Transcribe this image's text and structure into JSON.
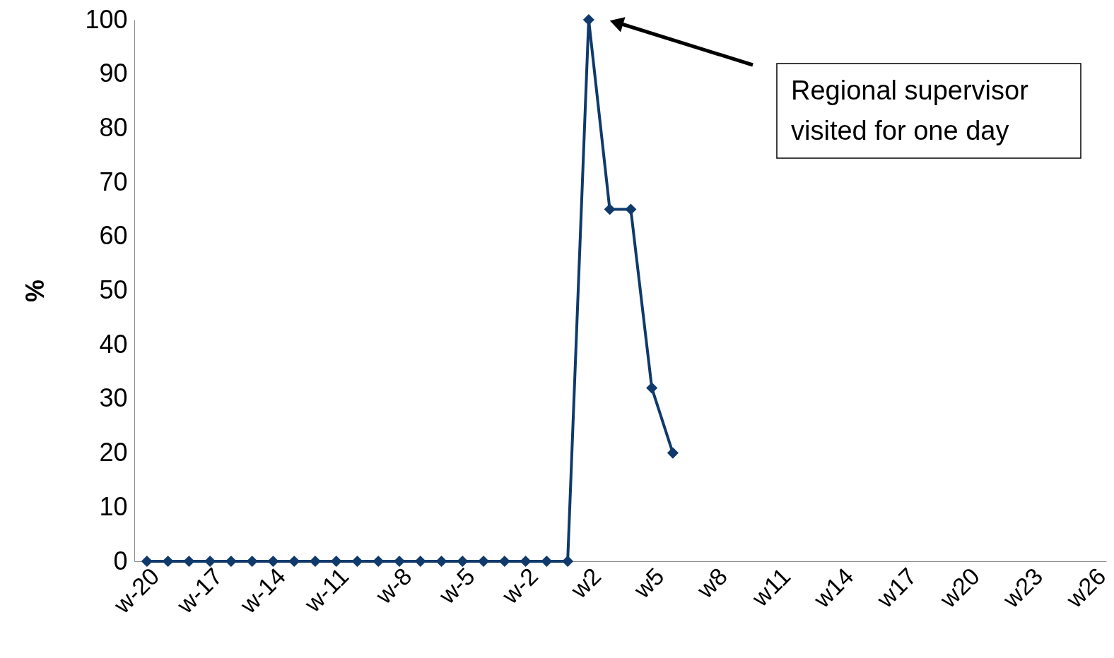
{
  "chart_data": {
    "type": "line",
    "ylabel": "%",
    "categories": [
      "w-20",
      null,
      null,
      "w-17",
      null,
      null,
      "w-14",
      null,
      null,
      "w-11",
      null,
      null,
      "w-8",
      null,
      null,
      "w-5",
      null,
      null,
      "w-2",
      null,
      null,
      "w2",
      null,
      null,
      "w5",
      null,
      null,
      "w8",
      null,
      null,
      "w11",
      null,
      null,
      "w14",
      null,
      null,
      "w17",
      null,
      null,
      "w20",
      null,
      null,
      "w23",
      null,
      null,
      "w26"
    ],
    "series": [
      {
        "color": "#0f3a6b",
        "values": [
          0,
          0,
          0,
          0,
          0,
          0,
          0,
          0,
          0,
          0,
          0,
          0,
          0,
          0,
          0,
          0,
          0,
          0,
          0,
          0,
          0,
          100,
          65,
          65,
          32,
          20,
          null,
          null,
          null,
          null,
          null,
          null,
          null,
          null,
          null,
          null,
          null,
          null,
          null,
          null,
          null,
          null,
          null,
          null,
          null,
          null
        ]
      }
    ],
    "ylim": [
      0,
      100
    ],
    "yticks": [
      0,
      10,
      20,
      30,
      40,
      50,
      60,
      70,
      80,
      90,
      100
    ],
    "grid": false,
    "marker": "diamond",
    "line_style": "solid",
    "annotations": [
      "Regional supervisor\nvisited for one day"
    ]
  }
}
